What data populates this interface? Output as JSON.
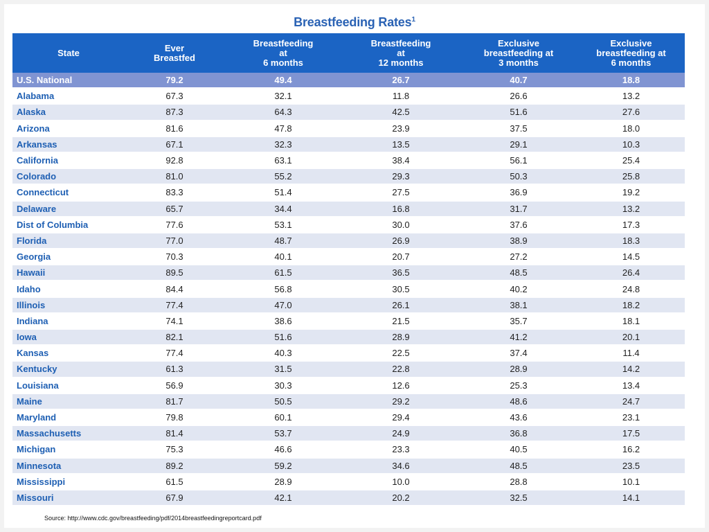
{
  "chart_data": {
    "type": "table",
    "title": "Breastfeeding Rates",
    "title_superscript": "1",
    "columns": [
      "State",
      "Ever\nBreastfed",
      "Breastfeeding\nat\n6 months",
      "Breastfeeding\nat\n12 months",
      "Exclusive\nbreastfeeding at\n3 months",
      "Exclusive\nbreastfeeding at\n6 months"
    ],
    "rows": [
      [
        "U.S. National",
        "79.2",
        "49.4",
        "26.7",
        "40.7",
        "18.8"
      ],
      [
        "Alabama",
        "67.3",
        "32.1",
        "11.8",
        "26.6",
        "13.2"
      ],
      [
        "Alaska",
        "87.3",
        "64.3",
        "42.5",
        "51.6",
        "27.6"
      ],
      [
        "Arizona",
        "81.6",
        "47.8",
        "23.9",
        "37.5",
        "18.0"
      ],
      [
        "Arkansas",
        "67.1",
        "32.3",
        "13.5",
        "29.1",
        "10.3"
      ],
      [
        "California",
        "92.8",
        "63.1",
        "38.4",
        "56.1",
        "25.4"
      ],
      [
        "Colorado",
        "81.0",
        "55.2",
        "29.3",
        "50.3",
        "25.8"
      ],
      [
        "Connecticut",
        "83.3",
        "51.4",
        "27.5",
        "36.9",
        "19.2"
      ],
      [
        "Delaware",
        "65.7",
        "34.4",
        "16.8",
        "31.7",
        "13.2"
      ],
      [
        "Dist of Columbia",
        "77.6",
        "53.1",
        "30.0",
        "37.6",
        "17.3"
      ],
      [
        "Florida",
        "77.0",
        "48.7",
        "26.9",
        "38.9",
        "18.3"
      ],
      [
        "Georgia",
        "70.3",
        "40.1",
        "20.7",
        "27.2",
        "14.5"
      ],
      [
        "Hawaii",
        "89.5",
        "61.5",
        "36.5",
        "48.5",
        "26.4"
      ],
      [
        "Idaho",
        "84.4",
        "56.8",
        "30.5",
        "40.2",
        "24.8"
      ],
      [
        "Illinois",
        "77.4",
        "47.0",
        "26.1",
        "38.1",
        "18.2"
      ],
      [
        "Indiana",
        "74.1",
        "38.6",
        "21.5",
        "35.7",
        "18.1"
      ],
      [
        "Iowa",
        "82.1",
        "51.6",
        "28.9",
        "41.2",
        "20.1"
      ],
      [
        "Kansas",
        "77.4",
        "40.3",
        "22.5",
        "37.4",
        "11.4"
      ],
      [
        "Kentucky",
        "61.3",
        "31.5",
        "22.8",
        "28.9",
        "14.2"
      ],
      [
        "Louisiana",
        "56.9",
        "30.3",
        "12.6",
        "25.3",
        "13.4"
      ],
      [
        "Maine",
        "81.7",
        "50.5",
        "29.2",
        "48.6",
        "24.7"
      ],
      [
        "Maryland",
        "79.8",
        "60.1",
        "29.4",
        "43.6",
        "23.1"
      ],
      [
        "Massachusetts",
        "81.4",
        "53.7",
        "24.9",
        "36.8",
        "17.5"
      ],
      [
        "Michigan",
        "75.3",
        "46.6",
        "23.3",
        "40.5",
        "16.2"
      ],
      [
        "Minnesota",
        "89.2",
        "59.2",
        "34.6",
        "48.5",
        "23.5"
      ],
      [
        "Mississippi",
        "61.5",
        "28.9",
        "10.0",
        "28.8",
        "10.1"
      ],
      [
        "Missouri",
        "67.9",
        "42.1",
        "20.2",
        "32.5",
        "14.1"
      ]
    ]
  },
  "source": "Source: http://www.cdc.gov/breastfeeding/pdf/2014breastfeedingreportcard.pdf",
  "colors": {
    "header_bg": "#1b64c4",
    "national_row_bg": "#8094d2",
    "stripe_bg": "#e1e6f2",
    "state_text": "#1e5fb3",
    "title_text": "#2a62b4"
  }
}
